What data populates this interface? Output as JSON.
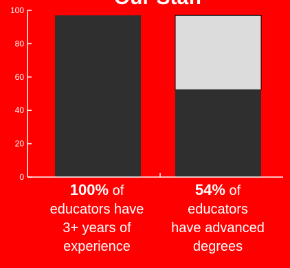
{
  "colors": {
    "background": "#ff0000",
    "bar_fill": "#2f2f2f",
    "bar_remainder": "#dcdcdc",
    "axis": "#ffffff",
    "text": "#ffffff"
  },
  "chart_data": {
    "type": "bar",
    "title": "Our Staff",
    "categories": [
      "3+ years of experience",
      "advanced degrees"
    ],
    "values": [
      100,
      54
    ],
    "totals": [
      100,
      100
    ],
    "ylim": [
      0,
      100
    ],
    "y_ticks": [
      "0",
      "20",
      "40",
      "60",
      "80",
      "100"
    ],
    "xlabel": "",
    "ylabel": "",
    "grid": false,
    "legend": "none"
  },
  "captions": [
    {
      "value": "100%",
      "rest1": " of",
      "line2": "educators have",
      "line3": "3+ years of",
      "line4": "experience"
    },
    {
      "value": "54%",
      "rest1": " of",
      "line2": "educators",
      "line3": "have advanced",
      "line4": "degrees"
    }
  ]
}
